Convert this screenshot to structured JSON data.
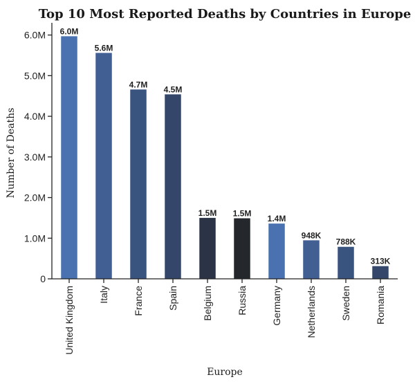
{
  "chart_data": {
    "type": "bar",
    "title": "Top 10 Most Reported Deaths by Countries in Europe",
    "xlabel": "Europe",
    "ylabel": "Number of Deaths",
    "categories": [
      "United Kingdom",
      "Italy",
      "France",
      "Spain",
      "Belgium",
      "Russia",
      "Germany",
      "Netherlands",
      "Sweden",
      "Romania"
    ],
    "values": [
      5970000,
      5560000,
      4660000,
      4540000,
      1500000,
      1490000,
      1360000,
      948000,
      788000,
      313000
    ],
    "data_labels": [
      "6.0M",
      "5.6M",
      "4.7M",
      "4.5M",
      "1.5M",
      "1.5M",
      "1.4M",
      "948K",
      "788K",
      "313K"
    ],
    "bar_colors": [
      "#4a72b0",
      "#425f93",
      "#3a5480",
      "#34476a",
      "#2b3447",
      "#24272c",
      "#4a72b0",
      "#425f93",
      "#3a5480",
      "#34476a"
    ],
    "ylim": [
      0,
      6300000
    ],
    "yticks": [
      0,
      1000000,
      2000000,
      3000000,
      4000000,
      5000000,
      6000000
    ],
    "ytick_labels": [
      "0",
      "1.0M",
      "2.0M",
      "3.0M",
      "4.0M",
      "5.0M",
      "6.0M"
    ],
    "grid": false,
    "legend": "none"
  }
}
